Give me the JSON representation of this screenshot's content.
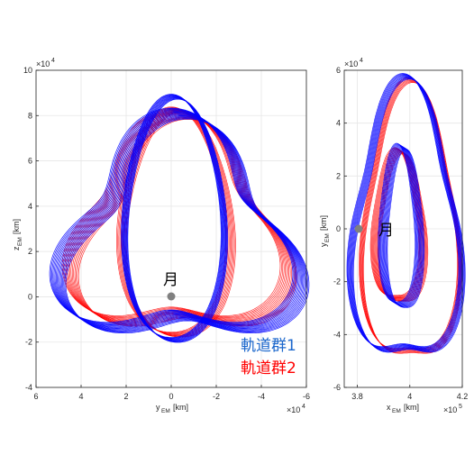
{
  "chart_data": [
    {
      "type": "line",
      "panel": "left",
      "xlabel_main": "y",
      "xlabel_sub": "EM",
      "xlabel_unit": "[km]",
      "ylabel_main": "z",
      "ylabel_sub": "EM",
      "ylabel_unit": "[km]",
      "xlim": [
        6,
        -6
      ],
      "ylim": [
        -4,
        10
      ],
      "x_ticks": [
        6,
        4,
        2,
        0,
        -2,
        -4,
        -6
      ],
      "y_ticks": [
        -4,
        -2,
        0,
        2,
        4,
        6,
        8,
        10
      ],
      "x_exponent_base": "×10",
      "x_exponent": "4",
      "y_exponent_base": "×10",
      "y_exponent": "4",
      "grid": true,
      "moon": {
        "x": 0,
        "y": 0,
        "label": "月"
      },
      "series": [
        {
          "name": "軌道群1",
          "color": "#0000ff"
        },
        {
          "name": "軌道群2",
          "color": "#ff0000"
        }
      ]
    },
    {
      "type": "line",
      "panel": "right",
      "xlabel_main": "x",
      "xlabel_sub": "EM",
      "xlabel_unit": "[km]",
      "ylabel_main": "y",
      "ylabel_sub": "EM",
      "ylabel_unit": "[km]",
      "xlim": [
        3.75,
        4.2
      ],
      "ylim": [
        -6,
        6
      ],
      "x_ticks": [
        3.8,
        4,
        4.2
      ],
      "y_ticks": [
        -6,
        -4,
        -2,
        0,
        2,
        4,
        6
      ],
      "x_exponent_base": "×10",
      "x_exponent": "5",
      "y_exponent_base": "×10",
      "y_exponent": "4",
      "grid": true,
      "moon": {
        "x": 3.844,
        "y": 0,
        "label": "月"
      },
      "series": [
        {
          "name": "軌道群1",
          "color": "#0000ff"
        },
        {
          "name": "軌道群2",
          "color": "#ff0000"
        }
      ]
    }
  ],
  "legend": [
    {
      "label": "軌道群1",
      "color": "#1a66cc"
    },
    {
      "label": "軌道群2",
      "color": "#ff0000"
    }
  ]
}
